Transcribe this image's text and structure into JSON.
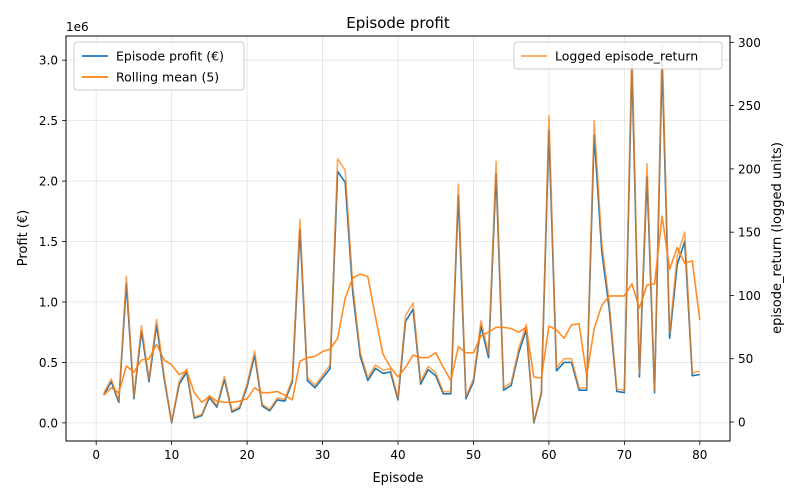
{
  "chart_data": {
    "type": "line",
    "title": "Episode profit",
    "xlabel": "Episode",
    "ylabel": "Profit (€)",
    "ylabel_right": "episode_return (logged units)",
    "y_offset_label": "1e6",
    "xlim": [
      -4,
      84
    ],
    "ylim": [
      -150000,
      3200000
    ],
    "ylim_right": [
      -15,
      305
    ],
    "x_ticks": [
      0,
      10,
      20,
      30,
      40,
      50,
      60,
      70,
      80
    ],
    "y_ticks": [
      0.0,
      0.5,
      1.0,
      1.5,
      2.0,
      2.5,
      3.0
    ],
    "y_tick_labels": [
      "0.0",
      "0.5",
      "1.0",
      "1.5",
      "2.0",
      "2.5",
      "3.0"
    ],
    "y_right_ticks": [
      0,
      50,
      100,
      150,
      200,
      250,
      300
    ],
    "y_right_tick_labels": [
      "0",
      "50",
      "100",
      "150",
      "200",
      "250",
      "300"
    ],
    "grid": true,
    "legend_left_placement": "top-left",
    "legend_right_placement": "top-right",
    "x": [
      1,
      2,
      3,
      4,
      5,
      6,
      7,
      8,
      9,
      10,
      11,
      12,
      13,
      14,
      15,
      16,
      17,
      18,
      19,
      20,
      21,
      22,
      23,
      24,
      25,
      26,
      27,
      28,
      29,
      30,
      31,
      32,
      33,
      34,
      35,
      36,
      37,
      38,
      39,
      40,
      41,
      42,
      43,
      44,
      45,
      46,
      47,
      48,
      49,
      50,
      51,
      52,
      53,
      54,
      55,
      56,
      57,
      58,
      59,
      60,
      61,
      62,
      63,
      64,
      65,
      66,
      67,
      68,
      69,
      70,
      71,
      72,
      73,
      74,
      75,
      76,
      77,
      78,
      79,
      80
    ],
    "series": [
      {
        "name": "Episode profit (€)",
        "color": "#1f77b4",
        "axis": "left",
        "values": [
          230000,
          340000,
          170000,
          1150000,
          200000,
          760000,
          340000,
          810000,
          370000,
          0,
          320000,
          420000,
          40000,
          60000,
          210000,
          130000,
          360000,
          90000,
          120000,
          300000,
          560000,
          140000,
          100000,
          190000,
          180000,
          340000,
          1600000,
          350000,
          290000,
          370000,
          450000,
          2080000,
          1990000,
          1080000,
          550000,
          350000,
          450000,
          410000,
          420000,
          190000,
          840000,
          940000,
          320000,
          440000,
          390000,
          240000,
          240000,
          1880000,
          200000,
          340000,
          800000,
          540000,
          2060000,
          270000,
          310000,
          580000,
          770000,
          0,
          240000,
          2420000,
          430000,
          500000,
          500000,
          270000,
          270000,
          2380000,
          1420000,
          940000,
          260000,
          250000,
          2960000,
          380000,
          2040000,
          250000,
          2980000,
          700000,
          1310000,
          1500000,
          390000,
          400000
        ]
      },
      {
        "name": "Rolling mean (5)",
        "color": "#ff7f0e",
        "axis": "left",
        "values": [
          230000,
          290000,
          250000,
          470000,
          420000,
          520000,
          530000,
          650000,
          520000,
          480000,
          400000,
          430000,
          250000,
          170000,
          220000,
          180000,
          170000,
          170000,
          180000,
          200000,
          290000,
          250000,
          250000,
          260000,
          230000,
          190000,
          510000,
          540000,
          550000,
          590000,
          610000,
          700000,
          1030000,
          1200000,
          1230000,
          1210000,
          880000,
          570000,
          460000,
          380000,
          460000,
          560000,
          540000,
          540000,
          580000,
          460000,
          350000,
          630000,
          580000,
          580000,
          720000,
          750000,
          790000,
          790000,
          780000,
          750000,
          790000,
          380000,
          370000,
          800000,
          770000,
          700000,
          810000,
          820000,
          390000,
          780000,
          970000,
          1050000,
          1050000,
          1050000,
          1150000,
          950000,
          1140000,
          1150000,
          1710000,
          1270000,
          1450000,
          1320000,
          1340000,
          850000
        ]
      },
      {
        "name": "Logged episode_return",
        "color": "#ff7f0e",
        "axis": "right",
        "values": [
          23,
          34,
          17,
          115,
          20,
          76,
          34,
          81,
          37,
          0,
          32,
          42,
          4,
          6,
          21,
          13,
          36,
          9,
          12,
          30,
          56,
          14,
          10,
          19,
          18,
          34,
          160,
          35,
          29,
          37,
          45,
          208,
          199,
          108,
          55,
          35,
          45,
          41,
          42,
          19,
          84,
          94,
          32,
          44,
          39,
          24,
          24,
          188,
          20,
          34,
          80,
          54,
          206,
          27,
          31,
          58,
          77,
          0,
          24,
          242,
          43,
          50,
          50,
          27,
          27,
          238,
          142,
          94,
          26,
          25,
          296,
          38,
          204,
          25,
          298,
          70,
          131,
          150,
          39,
          40
        ]
      }
    ]
  }
}
